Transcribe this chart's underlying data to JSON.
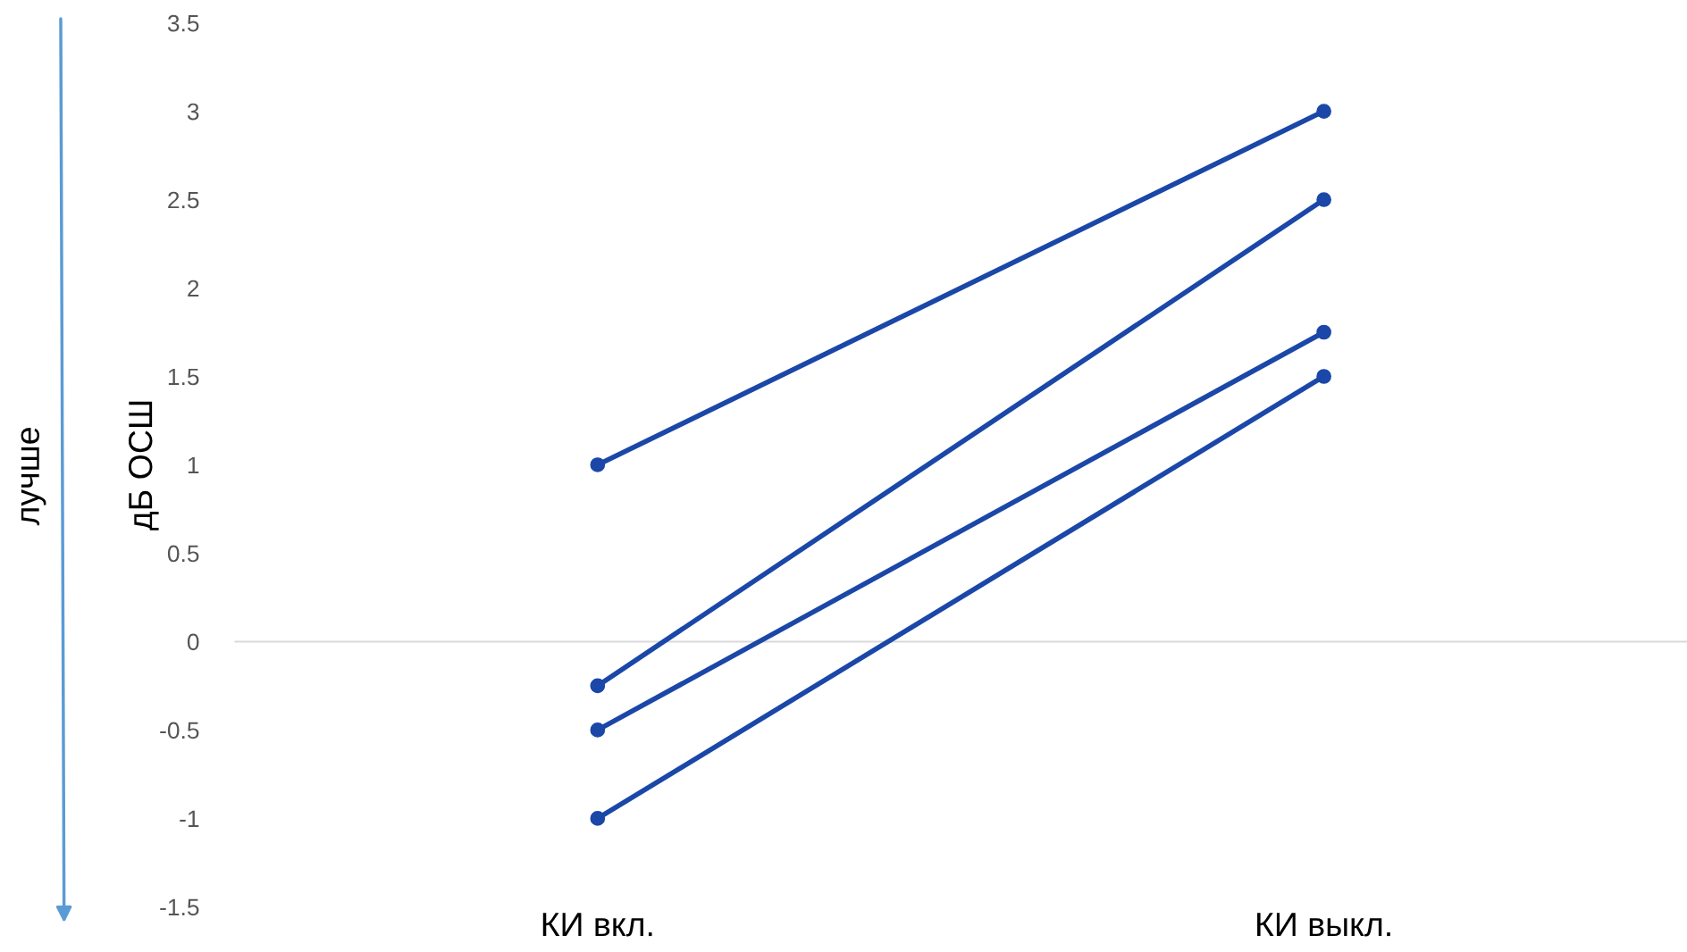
{
  "chart_data": {
    "type": "line",
    "ylabel": "дБ ОСШ",
    "annotations": [
      "лучше"
    ],
    "categories": [
      "КИ вкл.",
      "КИ выкл."
    ],
    "series": [
      {
        "color": "#1a47a8",
        "values": [
          1,
          3
        ]
      },
      {
        "color": "#1a47a8",
        "values": [
          -0.25,
          2.5
        ]
      },
      {
        "color": "#1a47a8",
        "values": [
          -0.5,
          1.75
        ]
      },
      {
        "color": "#1a47a8",
        "values": [
          -1,
          1.5
        ]
      }
    ],
    "ylim": [
      -1.5,
      3.5
    ],
    "yticks": [
      -1.5,
      -1,
      -0.5,
      0,
      0.5,
      1,
      1.5,
      2,
      2.5,
      3,
      3.5
    ],
    "ref_lines": [
      {
        "axis": "y",
        "value": 0,
        "color": "#d9d9d9"
      }
    ],
    "grid": false,
    "legend": false,
    "marker": "circle",
    "line_style": "solid"
  }
}
